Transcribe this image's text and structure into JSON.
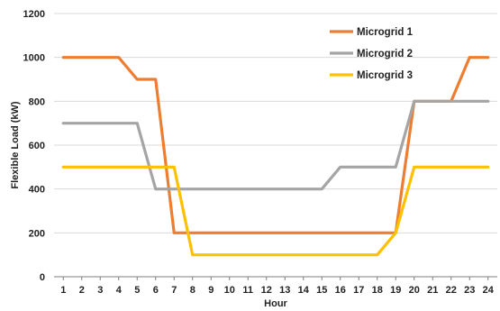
{
  "chart_data": {
    "type": "line",
    "title": "",
    "xlabel": "Hour",
    "ylabel": "Flexible Load (kW)",
    "x": [
      1,
      2,
      3,
      4,
      5,
      6,
      7,
      8,
      9,
      10,
      11,
      12,
      13,
      14,
      15,
      16,
      17,
      18,
      19,
      20,
      21,
      22,
      23,
      24
    ],
    "ylim": [
      0,
      1200
    ],
    "yticks": [
      0,
      200,
      400,
      600,
      800,
      1000,
      1200
    ],
    "grid": true,
    "legend_position": "top-right",
    "series": [
      {
        "name": "Microgrid 1",
        "color": "#ED7D31",
        "values": [
          1000,
          1000,
          1000,
          1000,
          900,
          900,
          200,
          200,
          200,
          200,
          200,
          200,
          200,
          200,
          200,
          200,
          200,
          200,
          200,
          800,
          800,
          800,
          1000,
          1000
        ]
      },
      {
        "name": "Microgrid 2",
        "color": "#A5A5A5",
        "values": [
          700,
          700,
          700,
          700,
          700,
          400,
          400,
          400,
          400,
          400,
          400,
          400,
          400,
          400,
          400,
          500,
          500,
          500,
          500,
          800,
          800,
          800,
          800,
          800
        ]
      },
      {
        "name": "Microgrid 3",
        "color": "#FFC000",
        "values": [
          500,
          500,
          500,
          500,
          500,
          500,
          500,
          100,
          100,
          100,
          100,
          100,
          100,
          100,
          100,
          100,
          100,
          100,
          200,
          500,
          500,
          500,
          500,
          500
        ]
      }
    ]
  }
}
